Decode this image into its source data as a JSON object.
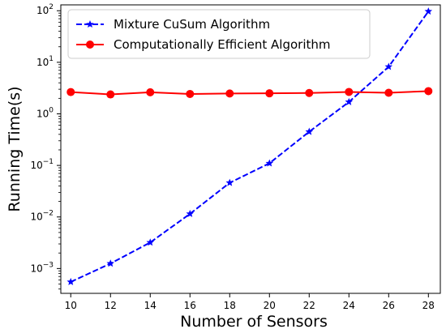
{
  "chart_data": {
    "type": "line",
    "title": "",
    "xlabel": "Number of Sensors",
    "ylabel": "Running Time(s)",
    "x": [
      10,
      12,
      14,
      16,
      18,
      20,
      22,
      24,
      26,
      28
    ],
    "x_ticks": [
      "10",
      "12",
      "14",
      "16",
      "18",
      "20",
      "22",
      "24",
      "26",
      "28"
    ],
    "xlim": [
      9.5,
      28.6
    ],
    "y_scale": "log",
    "ylim": [
      0.00033,
      130
    ],
    "y_ticks": [
      {
        "value": 0.001,
        "base": "10",
        "exp": "−3"
      },
      {
        "value": 0.01,
        "base": "10",
        "exp": "−2"
      },
      {
        "value": 0.1,
        "base": "10",
        "exp": "−1"
      },
      {
        "value": 1,
        "base": "10",
        "exp": "0"
      },
      {
        "value": 10,
        "base": "10",
        "exp": "1"
      },
      {
        "value": 100,
        "base": "10",
        "exp": "2"
      }
    ],
    "grid": false,
    "legend_position": "top-left",
    "series": [
      {
        "name": "Mixture CuSum Algorithm",
        "color": "#0000ff",
        "line_style": "dashed",
        "marker": "star",
        "values": [
          0.00055,
          0.00125,
          0.0032,
          0.0115,
          0.046,
          0.11,
          0.45,
          1.7,
          8.2,
          97
        ]
      },
      {
        "name": "Computationally Efficient Algorithm",
        "color": "#ff0000",
        "line_style": "solid",
        "marker": "circle",
        "values": [
          2.65,
          2.38,
          2.62,
          2.43,
          2.48,
          2.5,
          2.54,
          2.66,
          2.56,
          2.76
        ]
      }
    ]
  }
}
